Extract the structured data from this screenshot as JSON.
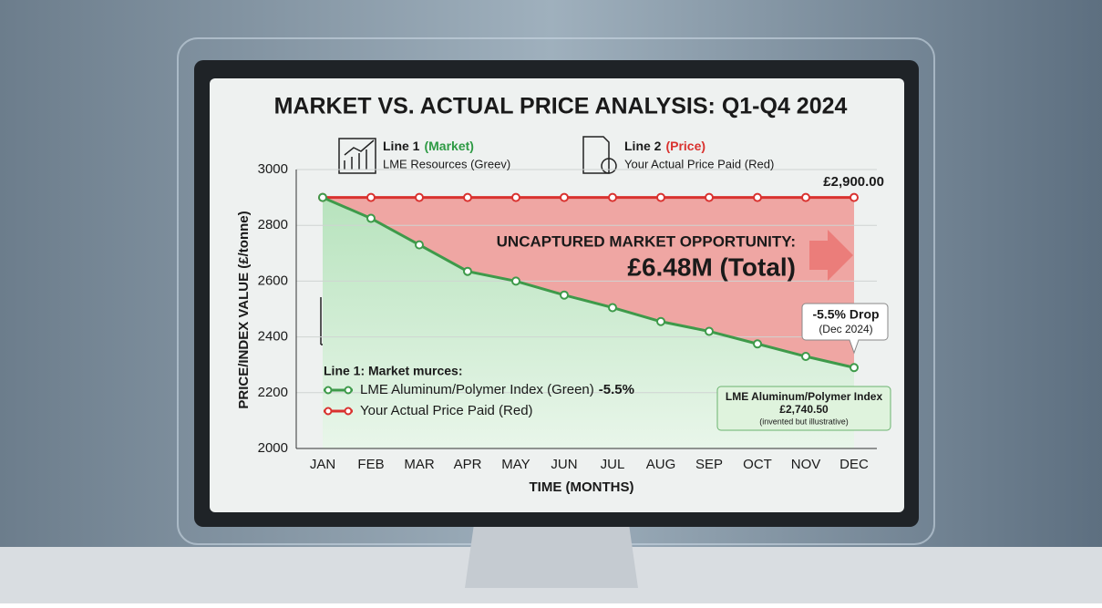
{
  "chart_data": {
    "type": "line",
    "title": "MARKET VS. ACTUAL PRICE ANALYSIS: Q1-Q4 2024",
    "top_legend": [
      {
        "label": "Line 1",
        "tag": "(Market)",
        "desc": "LME Resources (Greev)",
        "color": "#2e9a44"
      },
      {
        "label": "Line 2",
        "tag": "(Price)",
        "desc": "Your Actual Price Paid (Red)",
        "color": "#d9322f"
      }
    ],
    "x_label": "TIME (MONTHS)",
    "y_label": "PRICE/INDEX VALUE (£/tonne)",
    "categories": [
      "JAN",
      "FEB",
      "MAR",
      "APR",
      "MAY",
      "JUN",
      "JUL",
      "AUG",
      "SEP",
      "OCT",
      "NOV",
      "DEC"
    ],
    "series": [
      {
        "name": "LME Aluminum/Polymer Index (Green)",
        "color": "#3e9a4a",
        "values": [
          2900,
          2825,
          2730,
          2635,
          2600,
          2550,
          2505,
          2455,
          2420,
          2375,
          2330,
          2290
        ]
      },
      {
        "name": "Your Actual Price Paid (Red)",
        "color": "#d9322f",
        "values": [
          2900,
          2900,
          2900,
          2900,
          2900,
          2900,
          2900,
          2900,
          2900,
          2900,
          2900,
          2900
        ]
      }
    ],
    "ylim": [
      2000,
      3000
    ],
    "yticks": [
      2000,
      2200,
      2400,
      2600,
      2800,
      3000
    ],
    "grid": true,
    "legend_title": "Line 1: Market murces:",
    "legend_note": "-5.5%",
    "annotations": {
      "end_value": "£2,900.00",
      "opportunity": "UNCAPTURED MARKET OPPORTUNITY:",
      "total": "£6.48M (Total)",
      "drop": "-5.5% Drop",
      "drop_date": "(Dec 2024)",
      "box_title": "LME Aluminum/Polymer Index",
      "box_value": "£2,740.50",
      "box_note": "(invented but illustrative)"
    }
  }
}
